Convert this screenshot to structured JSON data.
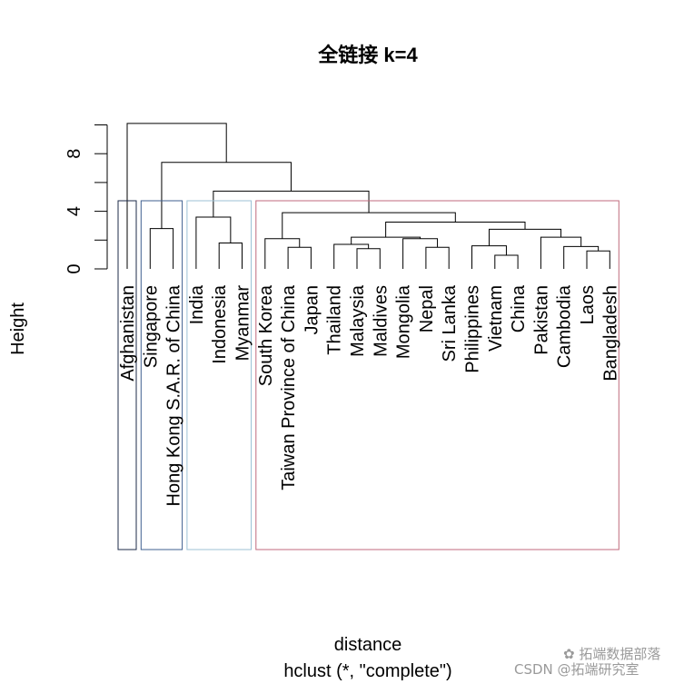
{
  "chart_data": {
    "type": "dendrogram",
    "title": "全链接 k=4",
    "ylabel": "Height",
    "xlabel": "distance",
    "sub": "hclust (*, \"complete\")",
    "ylim": [
      0,
      10
    ],
    "yticks": [
      0,
      4,
      8
    ],
    "leaves": [
      "Afghanistan",
      "Singapore",
      "Hong Kong S.A.R. of China",
      "India",
      "Indonesia",
      "Myanmar",
      "South Korea",
      "Taiwan Province of China",
      "Japan",
      "Thailand",
      "Malaysia",
      "Maldives",
      "Mongolia",
      "Nepal",
      "Sri Lanka",
      "Philippines",
      "Vietnam",
      "China",
      "Pakistan",
      "Cambodia",
      "Laos",
      "Bangladesh"
    ],
    "merges": [
      {
        "left": "Singapore",
        "right": "Hong Kong S.A.R. of China",
        "height": 2.8
      },
      {
        "left": "Indonesia",
        "right": "Myanmar",
        "height": 1.8
      },
      {
        "left": "India",
        "right": "Indonesia+Myanmar",
        "height": 3.6
      },
      {
        "left": "Taiwan Province of China",
        "right": "Japan",
        "height": 1.5
      },
      {
        "left": "South Korea",
        "right": "Taiwan Province of China+Japan",
        "height": 2.1
      },
      {
        "left": "Malaysia",
        "right": "Maldives",
        "height": 1.4
      },
      {
        "left": "Thailand",
        "right": "Malaysia+Maldives",
        "height": 1.7
      },
      {
        "left": "Nepal",
        "right": "Sri Lanka",
        "height": 1.5
      },
      {
        "left": "Mongolia",
        "right": "Nepal+Sri Lanka",
        "height": 2.1
      },
      {
        "left": "Thailand group",
        "right": "Mongolia group",
        "height": 2.2
      },
      {
        "left": "Vietnam",
        "right": "China",
        "height": 0.95
      },
      {
        "left": "Philippines",
        "right": "Vietnam+China",
        "height": 1.6
      },
      {
        "left": "Laos",
        "right": "Bangladesh",
        "height": 1.25
      },
      {
        "left": "Cambodia",
        "right": "Laos+Bangladesh",
        "height": 1.55
      },
      {
        "left": "Pakistan",
        "right": "Cambodia group",
        "height": 2.2
      },
      {
        "left": "Philippines group",
        "right": "Pakistan group",
        "height": 2.75
      },
      {
        "left": "Thailand-Mongolia group",
        "right": "Philippines-Pakistan group",
        "height": 3.25
      },
      {
        "left": "South Korea group",
        "right": "Southeast group",
        "height": 3.9
      },
      {
        "left": "India group",
        "right": "South Korea cluster",
        "height": 5.4
      },
      {
        "left": "Singapore group",
        "right": "Asia cluster",
        "height": 7.4
      },
      {
        "left": "Afghanistan",
        "right": "rest",
        "height": 10.1
      }
    ],
    "clusters": [
      {
        "first": 0,
        "last": 0,
        "color": "#1c2b4a"
      },
      {
        "first": 1,
        "last": 2,
        "color": "#3f5f8f"
      },
      {
        "first": 3,
        "last": 5,
        "color": "#9cc2d6"
      },
      {
        "first": 6,
        "last": 21,
        "color": "#c06a7c"
      }
    ]
  },
  "watermark": {
    "line1": "拓端数据部落",
    "line2": "CSDN @拓端研究室"
  }
}
